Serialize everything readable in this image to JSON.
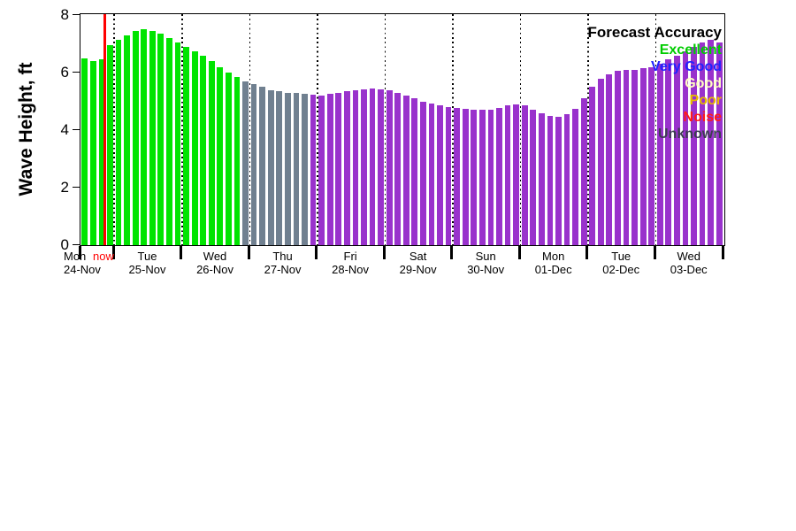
{
  "chart_data": {
    "type": "bar",
    "ylabel": "Wave Height, ft",
    "ylim": [
      0,
      8
    ],
    "yticks": [
      0,
      2,
      4,
      6,
      8
    ],
    "now_label": "now",
    "now_index": 2.92,
    "grid": "vertical-dotted-day-boundaries",
    "legend_position": "top-right",
    "bar_colors": {
      "g": "#00e400",
      "u": "#708090",
      "p": "#9932cc"
    },
    "bar_color_meaning": {
      "g": "excellent",
      "u": "unknown-gray",
      "p": "forecast-purple"
    },
    "days": [
      {
        "name": "Mon",
        "date": "24-Nov",
        "slots": 4
      },
      {
        "name": "Tue",
        "date": "25-Nov",
        "slots": 8
      },
      {
        "name": "Wed",
        "date": "26-Nov",
        "slots": 8
      },
      {
        "name": "Thu",
        "date": "27-Nov",
        "slots": 8
      },
      {
        "name": "Fri",
        "date": "28-Nov",
        "slots": 8
      },
      {
        "name": "Sat",
        "date": "29-Nov",
        "slots": 8
      },
      {
        "name": "Sun",
        "date": "30-Nov",
        "slots": 8
      },
      {
        "name": "Mon",
        "date": "01-Dec",
        "slots": 8
      },
      {
        "name": "Tue",
        "date": "02-Dec",
        "slots": 8
      },
      {
        "name": "Wed",
        "date": "03-Dec",
        "slots": 8
      }
    ],
    "bars": [
      {
        "v": 6.5,
        "c": "g"
      },
      {
        "v": 6.4,
        "c": "g"
      },
      {
        "v": 6.45,
        "c": "g"
      },
      {
        "v": 6.95,
        "c": "g"
      },
      {
        "v": 7.15,
        "c": "g"
      },
      {
        "v": 7.3,
        "c": "g"
      },
      {
        "v": 7.45,
        "c": "g"
      },
      {
        "v": 7.5,
        "c": "g"
      },
      {
        "v": 7.45,
        "c": "g"
      },
      {
        "v": 7.35,
        "c": "g"
      },
      {
        "v": 7.2,
        "c": "g"
      },
      {
        "v": 7.05,
        "c": "g"
      },
      {
        "v": 6.9,
        "c": "g"
      },
      {
        "v": 6.75,
        "c": "g"
      },
      {
        "v": 6.6,
        "c": "g"
      },
      {
        "v": 6.4,
        "c": "g"
      },
      {
        "v": 6.2,
        "c": "g"
      },
      {
        "v": 6.0,
        "c": "g"
      },
      {
        "v": 5.85,
        "c": "g"
      },
      {
        "v": 5.7,
        "c": "u"
      },
      {
        "v": 5.6,
        "c": "u"
      },
      {
        "v": 5.5,
        "c": "u"
      },
      {
        "v": 5.4,
        "c": "u"
      },
      {
        "v": 5.35,
        "c": "u"
      },
      {
        "v": 5.3,
        "c": "u"
      },
      {
        "v": 5.28,
        "c": "u"
      },
      {
        "v": 5.25,
        "c": "u"
      },
      {
        "v": 5.22,
        "c": "p"
      },
      {
        "v": 5.2,
        "c": "p"
      },
      {
        "v": 5.25,
        "c": "p"
      },
      {
        "v": 5.3,
        "c": "p"
      },
      {
        "v": 5.35,
        "c": "p"
      },
      {
        "v": 5.4,
        "c": "p"
      },
      {
        "v": 5.42,
        "c": "p"
      },
      {
        "v": 5.45,
        "c": "p"
      },
      {
        "v": 5.42,
        "c": "p"
      },
      {
        "v": 5.38,
        "c": "p"
      },
      {
        "v": 5.3,
        "c": "p"
      },
      {
        "v": 5.2,
        "c": "p"
      },
      {
        "v": 5.1,
        "c": "p"
      },
      {
        "v": 5.0,
        "c": "p"
      },
      {
        "v": 4.92,
        "c": "p"
      },
      {
        "v": 4.85,
        "c": "p"
      },
      {
        "v": 4.8,
        "c": "p"
      },
      {
        "v": 4.78,
        "c": "p"
      },
      {
        "v": 4.75,
        "c": "p"
      },
      {
        "v": 4.72,
        "c": "p"
      },
      {
        "v": 4.7,
        "c": "p"
      },
      {
        "v": 4.72,
        "c": "p"
      },
      {
        "v": 4.78,
        "c": "p"
      },
      {
        "v": 4.85,
        "c": "p"
      },
      {
        "v": 4.9,
        "c": "p"
      },
      {
        "v": 4.85,
        "c": "p"
      },
      {
        "v": 4.7,
        "c": "p"
      },
      {
        "v": 4.6,
        "c": "p"
      },
      {
        "v": 4.5,
        "c": "p"
      },
      {
        "v": 4.45,
        "c": "p"
      },
      {
        "v": 4.55,
        "c": "p"
      },
      {
        "v": 4.75,
        "c": "p"
      },
      {
        "v": 5.1,
        "c": "p"
      },
      {
        "v": 5.5,
        "c": "p"
      },
      {
        "v": 5.8,
        "c": "p"
      },
      {
        "v": 5.95,
        "c": "p"
      },
      {
        "v": 6.05,
        "c": "p"
      },
      {
        "v": 6.1,
        "c": "p"
      },
      {
        "v": 6.1,
        "c": "p"
      },
      {
        "v": 6.15,
        "c": "p"
      },
      {
        "v": 6.2,
        "c": "p"
      },
      {
        "v": 6.3,
        "c": "p"
      },
      {
        "v": 6.45,
        "c": "p"
      },
      {
        "v": 6.6,
        "c": "p"
      },
      {
        "v": 6.75,
        "c": "p"
      },
      {
        "v": 6.9,
        "c": "p"
      },
      {
        "v": 7.05,
        "c": "p"
      },
      {
        "v": 7.15,
        "c": "p"
      },
      {
        "v": 7.05,
        "c": "p"
      }
    ],
    "legend": {
      "title": "Forecast Accuracy",
      "entries": [
        {
          "label": "Excellent",
          "color": "#00cc00"
        },
        {
          "label": "Very Good",
          "color": "#2222ff"
        },
        {
          "label": "Good",
          "color": "#ffffc0"
        },
        {
          "label": "Poor",
          "color": "#e6b800"
        },
        {
          "label": "Noise",
          "color": "#ff1a1a"
        },
        {
          "label": "Unknown",
          "color": "#3d3d52"
        }
      ]
    }
  }
}
